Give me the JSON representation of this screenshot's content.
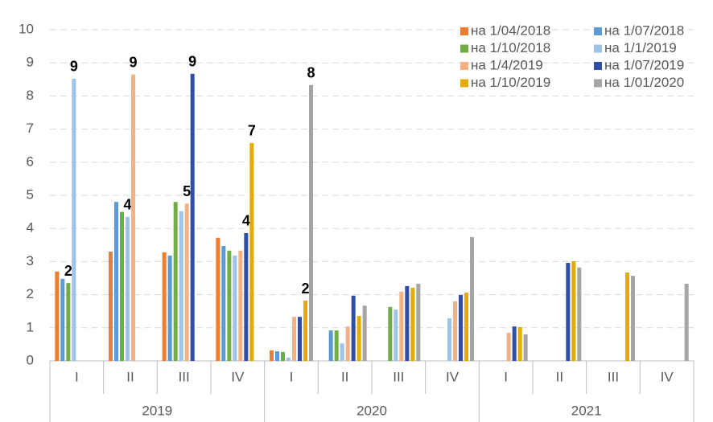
{
  "chart_data": {
    "type": "bar",
    "categories": [
      "I",
      "II",
      "III",
      "IV",
      "I",
      "II",
      "III",
      "IV",
      "I",
      "II",
      "III",
      "IV"
    ],
    "x_groups": [
      "2019",
      "2020",
      "2021"
    ],
    "ylim": [
      0,
      10
    ],
    "yticks": [
      0,
      1,
      2,
      3,
      4,
      5,
      6,
      7,
      8,
      9,
      10
    ],
    "grid": true,
    "legend": "top-right",
    "series": [
      {
        "name": "на 1/04/2018",
        "color": "#ED7D31",
        "values": [
          2.7,
          3.3,
          3.28,
          3.72,
          0.32,
          null,
          null,
          null,
          null,
          null,
          null,
          null
        ]
      },
      {
        "name": "на 1/07/2018",
        "color": "#5B9BD5",
        "values": [
          2.48,
          4.8,
          3.18,
          3.47,
          0.29,
          0.92,
          null,
          null,
          null,
          null,
          null,
          null
        ]
      },
      {
        "name": "на 1/10/2018",
        "color": "#70AD47",
        "values": [
          2.35,
          4.5,
          4.8,
          3.33,
          0.27,
          0.92,
          1.63,
          null,
          null,
          null,
          null,
          null
        ],
        "value_labels": [
          "2",
          null,
          null,
          null,
          null,
          null,
          null,
          null,
          null,
          null,
          null,
          null
        ]
      },
      {
        "name": "на 1/1/2019",
        "color": "#9DC3E6",
        "values": [
          8.52,
          4.35,
          4.52,
          3.18,
          0.1,
          0.53,
          1.55,
          1.29,
          null,
          null,
          null,
          null
        ],
        "value_labels": [
          "9",
          "4",
          null,
          null,
          null,
          null,
          null,
          null,
          null,
          null,
          null,
          null
        ]
      },
      {
        "name": "на 1/4/2019",
        "color": "#F4B183",
        "values": [
          null,
          8.65,
          4.75,
          3.33,
          1.33,
          1.04,
          2.09,
          1.8,
          0.85,
          null,
          null,
          null
        ],
        "value_labels": [
          null,
          "9",
          "5",
          null,
          null,
          null,
          null,
          null,
          null,
          null,
          null,
          null
        ]
      },
      {
        "name": "на 1/07/2019",
        "color": "#2E4FA5",
        "values": [
          null,
          null,
          8.67,
          3.86,
          1.33,
          1.97,
          2.26,
          1.99,
          1.04,
          2.96,
          null,
          null
        ],
        "value_labels": [
          null,
          null,
          "9",
          "4",
          null,
          null,
          null,
          null,
          null,
          null,
          null,
          null
        ]
      },
      {
        "name": "на 1/10/2019",
        "color": "#E5AC00",
        "values": [
          null,
          null,
          null,
          6.58,
          1.82,
          1.36,
          2.21,
          2.06,
          1.02,
          3.01,
          2.67,
          null
        ],
        "value_labels": [
          null,
          null,
          null,
          "7",
          "2",
          null,
          null,
          null,
          null,
          null,
          null,
          null
        ]
      },
      {
        "name": "на 1/01/2020",
        "color": "#A5A5A5",
        "values": [
          null,
          null,
          null,
          null,
          8.33,
          1.67,
          2.33,
          3.74,
          0.8,
          2.82,
          2.57,
          2.33
        ],
        "value_labels": [
          null,
          null,
          null,
          null,
          "8",
          null,
          null,
          null,
          null,
          null,
          null,
          null
        ]
      }
    ]
  }
}
